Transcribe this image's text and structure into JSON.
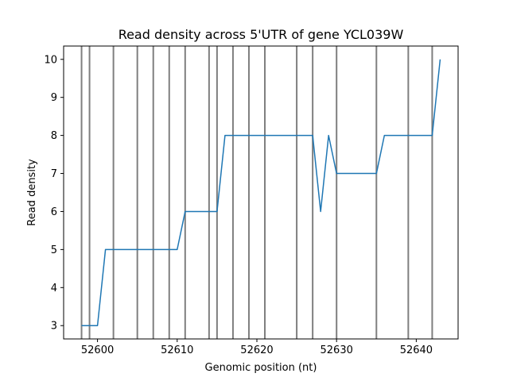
{
  "chart_data": {
    "type": "line",
    "title": "Read density across 5'UTR of gene YCL039W",
    "xlabel": "Genomic position (nt)",
    "ylabel": "Read density",
    "xlim": [
      52595.75,
      52645.25
    ],
    "ylim": [
      2.65,
      10.35
    ],
    "xticks": [
      52600,
      52610,
      52620,
      52630,
      52640
    ],
    "yticks": [
      3,
      4,
      5,
      6,
      7,
      8,
      9,
      10
    ],
    "grid": false,
    "line_color": "#1f77b4",
    "marker_color": "#000000",
    "vertical_markers": [
      52598,
      52599,
      52602,
      52605,
      52607,
      52609,
      52611,
      52614,
      52615,
      52617,
      52619,
      52621,
      52625,
      52627,
      52630,
      52635,
      52639,
      52642
    ],
    "series": [
      {
        "x": [
          52598,
          52599,
          52600,
          52601,
          52602,
          52603,
          52604,
          52605,
          52606,
          52607,
          52608,
          52609,
          52610,
          52611,
          52612,
          52613,
          52614,
          52615,
          52616,
          52617,
          52618,
          52619,
          52620,
          52621,
          52622,
          52623,
          52624,
          52625,
          52626,
          52627,
          52628,
          52629,
          52630,
          52631,
          52632,
          52633,
          52634,
          52635,
          52636,
          52637,
          52638,
          52639,
          52640,
          52641,
          52642,
          52643
        ],
        "values": [
          3,
          3,
          3,
          5,
          5,
          5,
          5,
          5,
          5,
          5,
          5,
          5,
          5,
          6,
          6,
          6,
          6,
          6,
          8,
          8,
          8,
          8,
          8,
          8,
          8,
          8,
          8,
          8,
          8,
          8,
          6,
          8,
          7,
          7,
          7,
          7,
          7,
          7,
          8,
          8,
          8,
          8,
          8,
          8,
          8,
          10
        ]
      }
    ]
  }
}
